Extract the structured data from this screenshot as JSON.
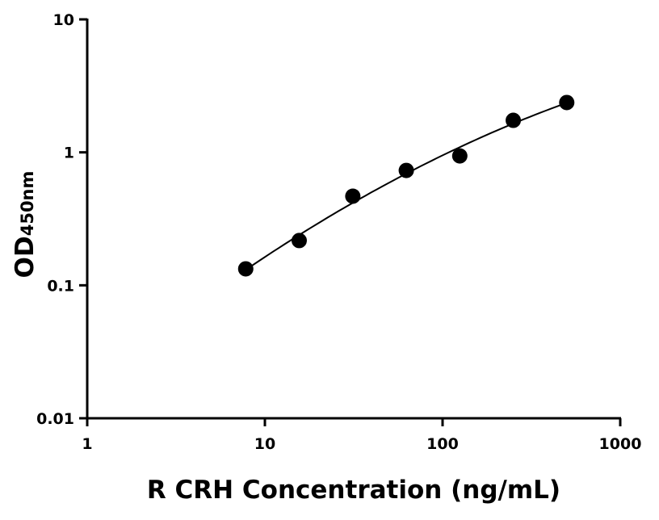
{
  "chart_data": {
    "type": "scatter",
    "title": "",
    "xlabel": "R CRH Concentration (ng/mL)",
    "ylabel": "OD",
    "ylabel_subscript": "450nm",
    "xscale": "log",
    "yscale": "log",
    "xlim": [
      1,
      1000
    ],
    "ylim": [
      0.01,
      10
    ],
    "xticks": [
      1,
      10,
      100,
      1000
    ],
    "xtick_labels": [
      "1",
      "10",
      "100",
      "1000"
    ],
    "yticks": [
      0.01,
      0.1,
      1,
      10
    ],
    "ytick_labels": [
      "0.01",
      "0.1",
      "1",
      "10"
    ],
    "grid": false,
    "fit_curve": true,
    "marker_color": "#000000",
    "x": [
      7.8,
      15.6,
      31.25,
      62.5,
      125,
      250,
      500
    ],
    "y": [
      0.133,
      0.217,
      0.468,
      0.731,
      0.94,
      1.74,
      2.37
    ]
  }
}
